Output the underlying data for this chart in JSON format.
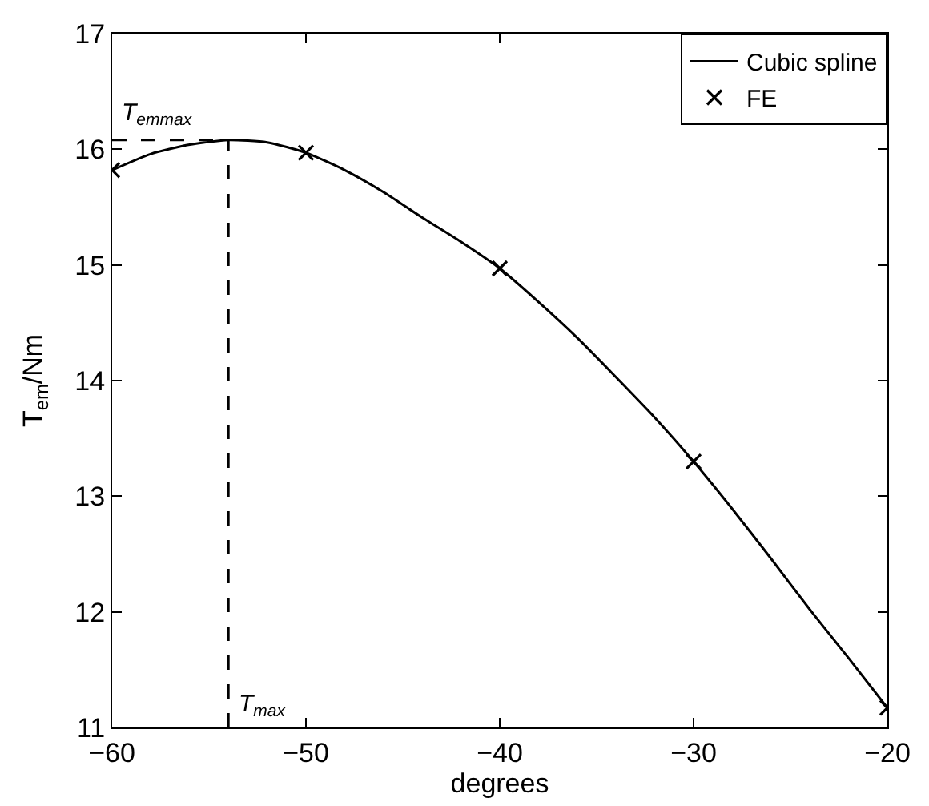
{
  "chart_data": {
    "type": "line",
    "xlabel": "degrees",
    "ylabel": "T$_{em}$/Nm",
    "xlim": [
      -60,
      -20
    ],
    "xticks": [
      -60,
      -50,
      -40,
      -30,
      -20
    ],
    "ylim": [
      11,
      17
    ],
    "yticks": [
      11,
      12,
      13,
      14,
      15,
      16,
      17
    ],
    "legend": "top right",
    "series": [
      {
        "name": "Cubic spline",
        "color": "#000000",
        "line_style": "solid",
        "marker": "none",
        "x": [
          -60,
          -58,
          -56,
          -54,
          -52,
          -50,
          -48,
          -46,
          -44,
          -42,
          -40,
          -38,
          -36,
          -34,
          -32,
          -30,
          -28,
          -26,
          -24,
          -22,
          -20
        ],
        "values": [
          15.82,
          15.96,
          16.04,
          16.08,
          16.06,
          15.97,
          15.82,
          15.63,
          15.41,
          15.2,
          14.97,
          14.68,
          14.37,
          14.03,
          13.68,
          13.3,
          12.89,
          12.46,
          12.02,
          11.6,
          11.17
        ]
      },
      {
        "name": "FE",
        "type": "scatter",
        "color": "#000000",
        "marker": "cross",
        "x": [
          -60,
          -50,
          -40,
          -30,
          -20
        ],
        "values": [
          15.82,
          15.97,
          14.97,
          13.3,
          11.17
        ]
      }
    ],
    "ref_lines": [
      {
        "axis": "x",
        "value": -54,
        "label": "T$_{max}$",
        "line_style": "dashed",
        "color": "#000000"
      },
      {
        "axis": "y",
        "value": 16.08,
        "label": "T$_{emmax}$",
        "line_style": "dashed",
        "color": "#000000"
      }
    ]
  }
}
